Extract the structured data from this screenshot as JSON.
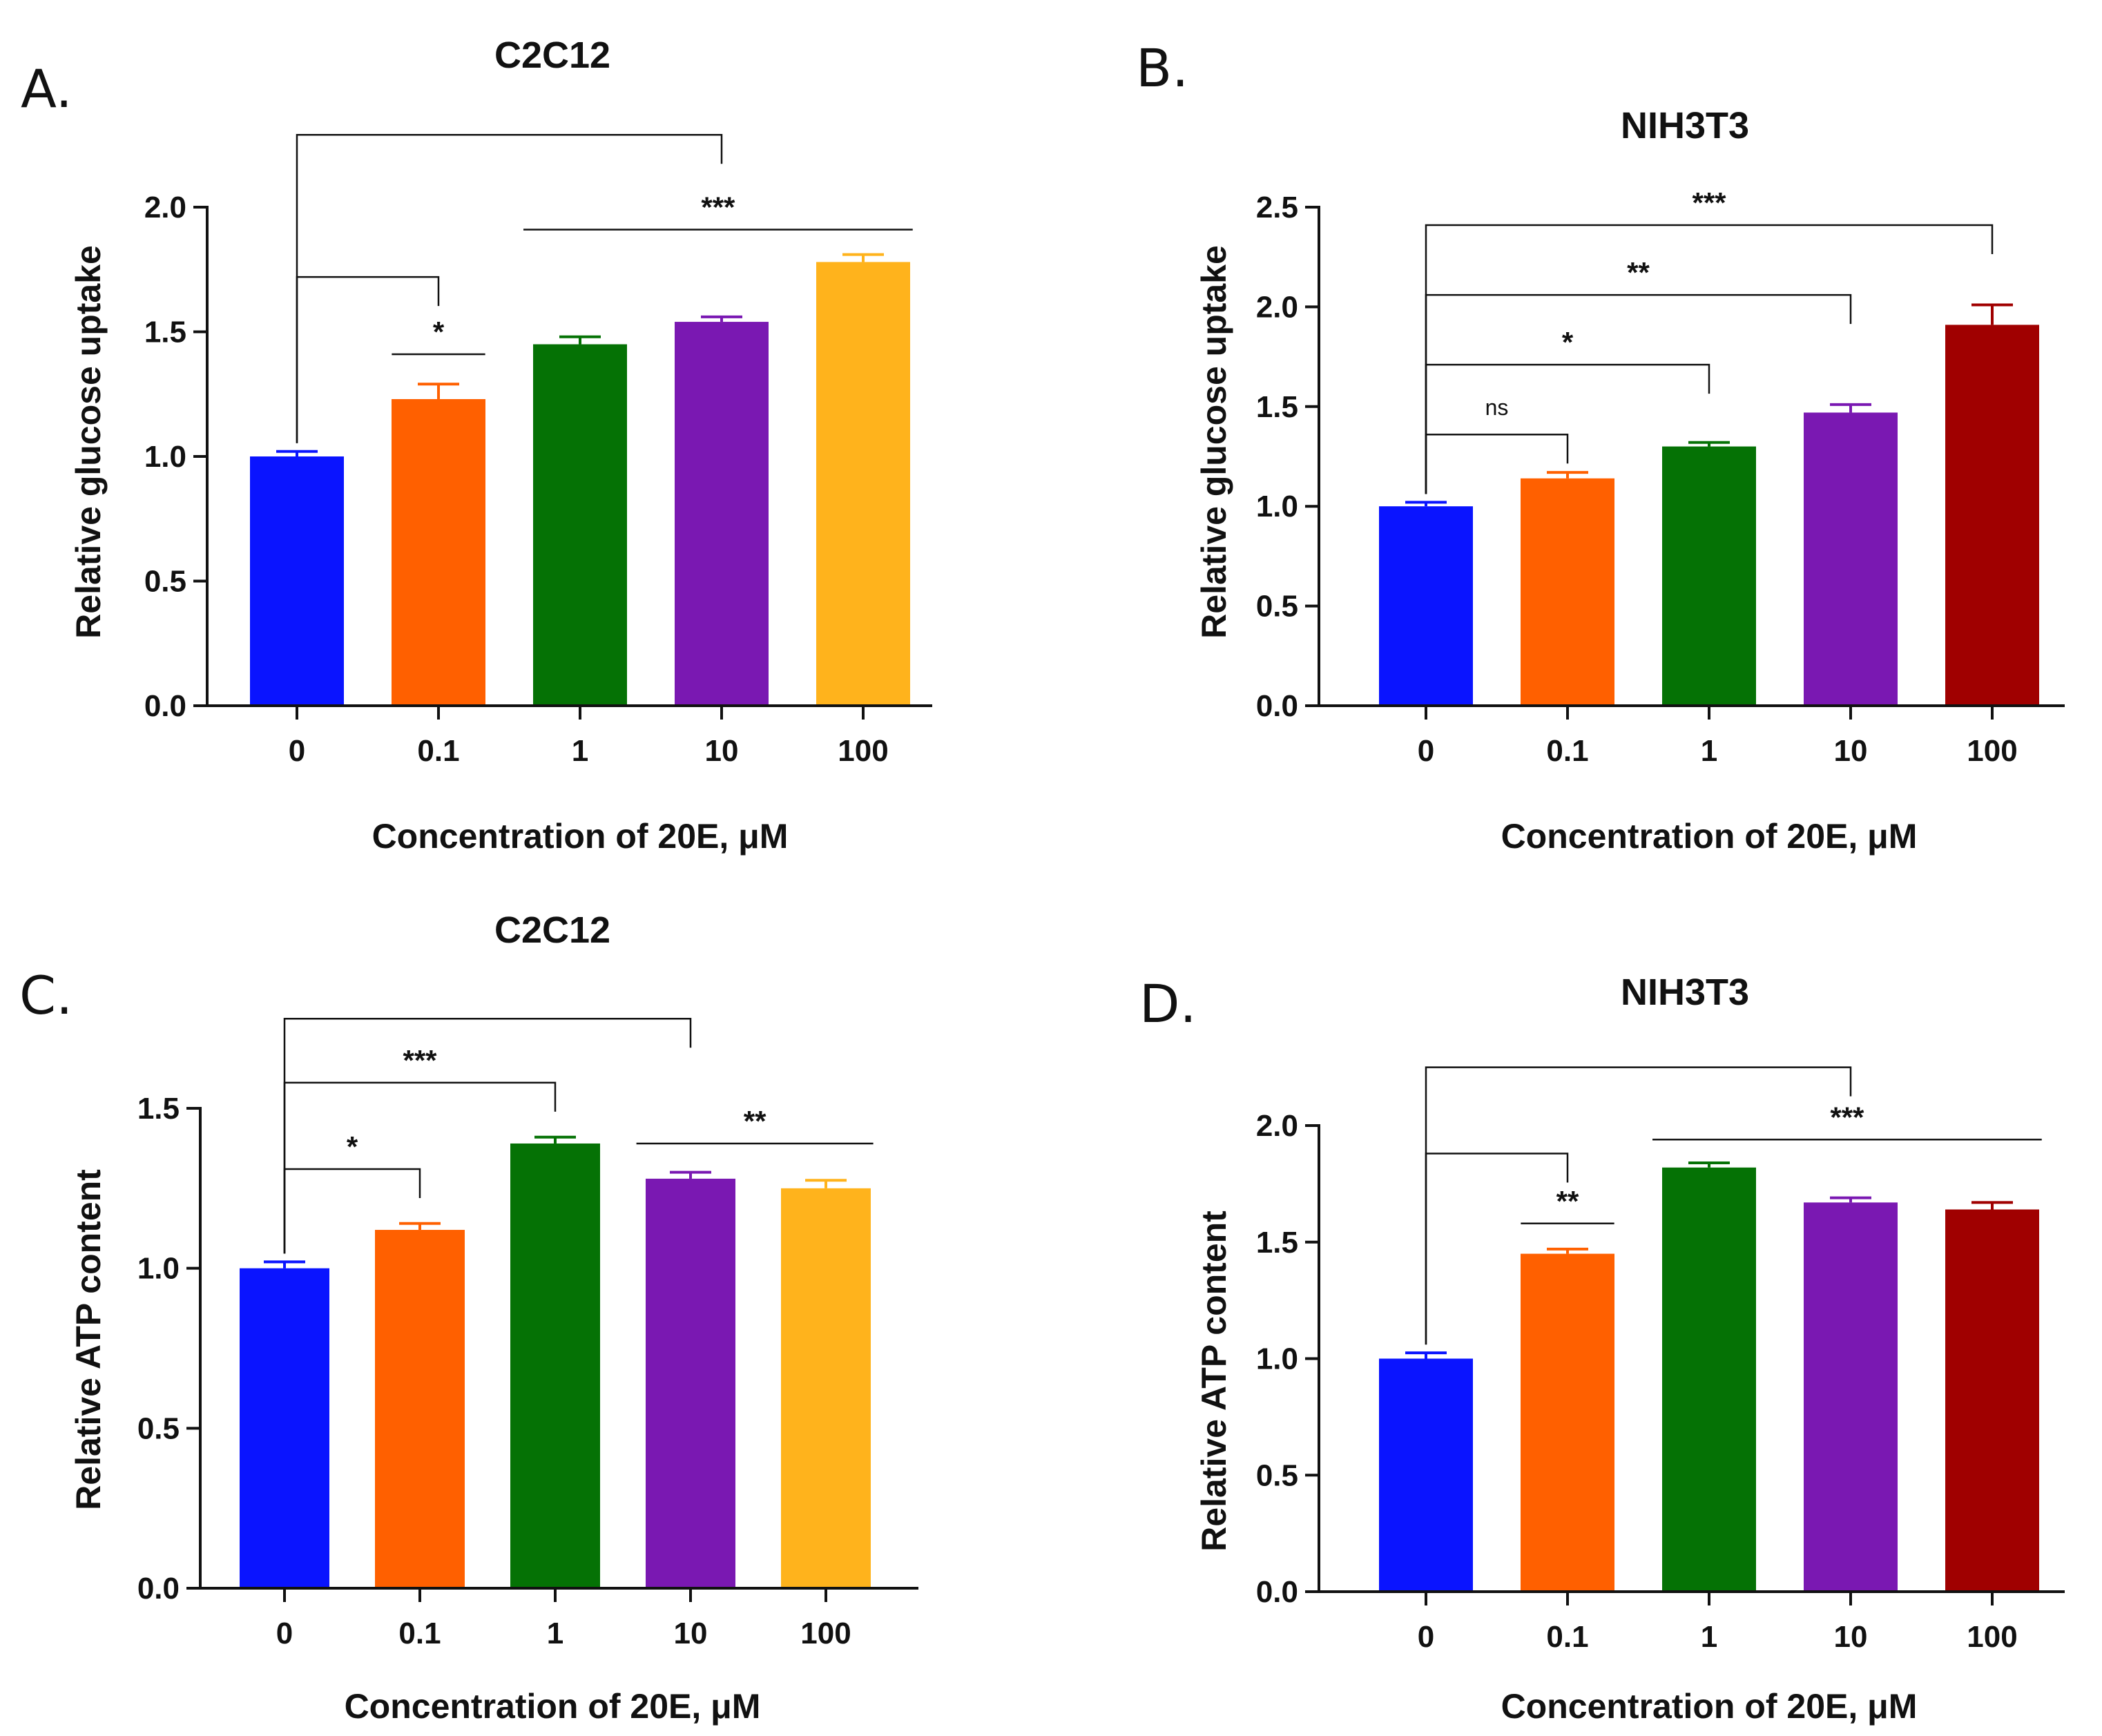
{
  "figure": {
    "background": "#ffffff",
    "axis_color": "#111111"
  },
  "colors": {
    "blue": "#0a14ff",
    "orange": "#ff6000",
    "green": "#057205",
    "purple": "#7a18b2",
    "yellow": "#ffb31c",
    "darkred": "#a00000"
  },
  "chart_data": [
    {
      "panel": "A.",
      "type": "bar",
      "title": "C2C12",
      "xlabel": "Concentration of 20E, μM",
      "ylabel": "Relative glucose uptake",
      "categories": [
        "0",
        "0.1",
        "1",
        "10",
        "100"
      ],
      "values": [
        1.0,
        1.23,
        1.45,
        1.54,
        1.78
      ],
      "errors": [
        0.02,
        0.06,
        0.03,
        0.02,
        0.03
      ],
      "bar_colors": [
        "#0a14ff",
        "#ff6000",
        "#057205",
        "#7a18b2",
        "#ffb31c"
      ],
      "ylim": [
        0,
        2.0
      ],
      "yticks": [
        0.0,
        0.5,
        1.0,
        1.5,
        2.0
      ],
      "ytick_labels": [
        "0.0",
        "0.5",
        "1.0",
        "1.5",
        "2.0"
      ],
      "significance": [
        {
          "from": 0,
          "to": 3,
          "label": "",
          "y": 2.29
        },
        {
          "from": 0,
          "to": 1,
          "label": "",
          "y": 1.72
        },
        {
          "from": 1,
          "to": 1,
          "label": "*",
          "y": 1.41,
          "style": "line",
          "halfwidth": 0.33
        },
        {
          "from": 2,
          "to": 4,
          "label": "***",
          "y": 1.91,
          "style": "line"
        }
      ]
    },
    {
      "panel": "B.",
      "type": "bar",
      "title": "NIH3T3",
      "xlabel": "Concentration of 20E, μM",
      "ylabel": "Relative glucose uptake",
      "categories": [
        "0",
        "0.1",
        "1",
        "10",
        "100"
      ],
      "values": [
        1.0,
        1.14,
        1.3,
        1.47,
        1.91
      ],
      "errors": [
        0.02,
        0.03,
        0.02,
        0.04,
        0.1
      ],
      "bar_colors": [
        "#0a14ff",
        "#ff6000",
        "#057205",
        "#7a18b2",
        "#a00000"
      ],
      "ylim": [
        0,
        2.5
      ],
      "yticks": [
        0.0,
        0.5,
        1.0,
        1.5,
        2.0,
        2.5
      ],
      "ytick_labels": [
        "0.0",
        "0.5",
        "1.0",
        "1.5",
        "2.0",
        "2.5"
      ],
      "significance": [
        {
          "from": 0,
          "to": 1,
          "label": "ns",
          "y": 1.36,
          "style": "ns"
        },
        {
          "from": 0,
          "to": 2,
          "label": "*",
          "y": 1.71
        },
        {
          "from": 0,
          "to": 3,
          "label": "**",
          "y": 2.06
        },
        {
          "from": 0,
          "to": 4,
          "label": "***",
          "y": 2.41
        }
      ]
    },
    {
      "panel": "C.",
      "type": "bar",
      "title": "C2C12",
      "xlabel": "Concentration of 20E, μM",
      "ylabel": "Relative ATP content",
      "categories": [
        "0",
        "0.1",
        "1",
        "10",
        "100"
      ],
      "values": [
        1.0,
        1.12,
        1.39,
        1.28,
        1.25
      ],
      "errors": [
        0.02,
        0.02,
        0.02,
        0.02,
        0.025
      ],
      "bar_colors": [
        "#0a14ff",
        "#ff6000",
        "#057205",
        "#7a18b2",
        "#ffb31c"
      ],
      "ylim": [
        0,
        1.5
      ],
      "yticks": [
        0.0,
        0.5,
        1.0,
        1.5
      ],
      "ytick_labels": [
        "0.0",
        "0.5",
        "1.0",
        "1.5"
      ],
      "significance": [
        {
          "from": 0,
          "to": 1,
          "label": "*",
          "y": 1.31
        },
        {
          "from": 0,
          "to": 2,
          "label": "***",
          "y": 1.58
        },
        {
          "from": 0,
          "to": 3,
          "label": "",
          "y": 1.78
        },
        {
          "from": 3,
          "to": 4,
          "label": "**",
          "y": 1.39,
          "style": "line"
        }
      ]
    },
    {
      "panel": "D.",
      "type": "bar",
      "title": "NIH3T3",
      "xlabel": "Concentration of 20E, μM",
      "ylabel": "Relative ATP content",
      "categories": [
        "0",
        "0.1",
        "1",
        "10",
        "100"
      ],
      "values": [
        1.0,
        1.45,
        1.82,
        1.67,
        1.64
      ],
      "errors": [
        0.025,
        0.02,
        0.02,
        0.02,
        0.03
      ],
      "bar_colors": [
        "#0a14ff",
        "#ff6000",
        "#057205",
        "#7a18b2",
        "#a00000"
      ],
      "ylim": [
        0,
        2.0
      ],
      "yticks": [
        0.0,
        0.5,
        1.0,
        1.5,
        2.0
      ],
      "ytick_labels": [
        "0.0",
        "0.5",
        "1.0",
        "1.5",
        "2.0"
      ],
      "significance": [
        {
          "from": 0,
          "to": 3,
          "label": "",
          "y": 2.25
        },
        {
          "from": 0,
          "to": 1,
          "label": "",
          "y": 1.88
        },
        {
          "from": 1,
          "to": 1,
          "label": "**",
          "y": 1.58,
          "style": "line",
          "halfwidth": 0.33
        },
        {
          "from": 2,
          "to": 4,
          "label": "***",
          "y": 1.94,
          "style": "line"
        }
      ]
    }
  ]
}
